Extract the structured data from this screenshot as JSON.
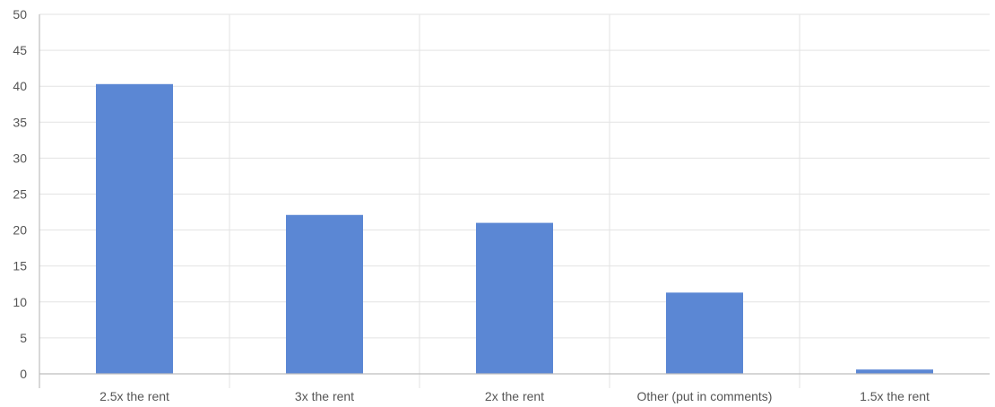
{
  "colors": {
    "bar": "#5b87d4",
    "grid": "#e3e3e3",
    "axis": "#bdbdbd",
    "text": "#555555"
  },
  "chart_data": {
    "type": "bar",
    "title": "",
    "xlabel": "",
    "ylabel": "",
    "categories": [
      "2.5x the rent",
      "3x the rent",
      "2x the rent",
      "Other (put in comments)",
      "1.5x the rent"
    ],
    "values": [
      40.3,
      22.1,
      21.0,
      11.3,
      0.6
    ],
    "ylim": [
      0,
      50
    ],
    "yticks": [
      "0",
      "5",
      "10",
      "15",
      "20",
      "25",
      "30",
      "35",
      "40",
      "45",
      "50"
    ],
    "grid": true,
    "legend": "none"
  }
}
